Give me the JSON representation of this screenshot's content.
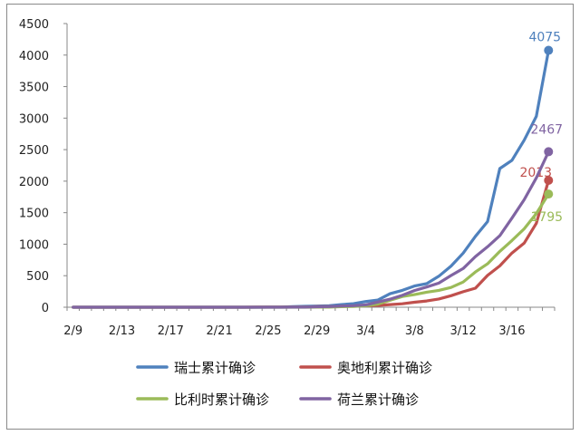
{
  "chart_data": {
    "type": "line",
    "title": "",
    "xlabel": "",
    "ylabel": "",
    "ylim": [
      0,
      4500
    ],
    "yticks": [
      0,
      500,
      1000,
      1500,
      2000,
      2500,
      3000,
      3500,
      4000,
      4500
    ],
    "xticks": [
      "2/9",
      "2/13",
      "2/17",
      "2/21",
      "2/25",
      "2/29",
      "3/4",
      "3/8",
      "3/12",
      "3/16"
    ],
    "x": [
      "2/9",
      "2/10",
      "2/11",
      "2/12",
      "2/13",
      "2/14",
      "2/15",
      "2/16",
      "2/17",
      "2/18",
      "2/19",
      "2/20",
      "2/21",
      "2/22",
      "2/23",
      "2/24",
      "2/25",
      "2/26",
      "2/27",
      "2/28",
      "2/29",
      "3/1",
      "3/2",
      "3/3",
      "3/4",
      "3/5",
      "3/6",
      "3/7",
      "3/8",
      "3/9",
      "3/10",
      "3/11",
      "3/12",
      "3/13",
      "3/14",
      "3/15",
      "3/16",
      "3/17",
      "3/18",
      "3/19"
    ],
    "grid": false,
    "legend_position": "bottom",
    "series": [
      {
        "name": "瑞士累计确诊",
        "color": "#4f81bd",
        "end_label": "4075",
        "values": [
          0,
          0,
          0,
          0,
          0,
          0,
          0,
          0,
          0,
          0,
          0,
          0,
          0,
          0,
          0,
          0,
          1,
          1,
          8,
          15,
          18,
          24,
          42,
          56,
          90,
          114,
          214,
          268,
          337,
          374,
          491,
          652,
          858,
          1125,
          1359,
          2200,
          2330,
          2650,
          3028,
          4075
        ]
      },
      {
        "name": "奥地利累计确诊",
        "color": "#c0504d",
        "end_label": "2013",
        "values": [
          0,
          0,
          0,
          0,
          0,
          0,
          0,
          0,
          0,
          0,
          0,
          0,
          0,
          0,
          0,
          2,
          2,
          3,
          3,
          3,
          9,
          10,
          14,
          18,
          24,
          29,
          41,
          55,
          79,
          99,
          131,
          182,
          246,
          302,
          504,
          655,
          860,
          1016,
          1332,
          2013
        ]
      },
      {
        "name": "比利时累计确诊",
        "color": "#9bbb59",
        "end_label": "1795",
        "values": [
          0,
          0,
          0,
          0,
          0,
          0,
          0,
          0,
          0,
          0,
          0,
          0,
          0,
          0,
          0,
          0,
          0,
          0,
          0,
          0,
          1,
          2,
          8,
          13,
          23,
          50,
          109,
          169,
          200,
          239,
          267,
          314,
          399,
          559,
          689,
          886,
          1058,
          1243,
          1486,
          1795
        ]
      },
      {
        "name": "荷兰累计确诊",
        "color": "#8064a2",
        "end_label": "2467",
        "values": [
          0,
          0,
          0,
          0,
          0,
          0,
          0,
          0,
          0,
          0,
          0,
          0,
          0,
          0,
          0,
          0,
          0,
          0,
          1,
          2,
          7,
          10,
          18,
          24,
          38,
          82,
          128,
          188,
          265,
          321,
          382,
          503,
          614,
          804,
          959,
          1135,
          1413,
          1705,
          2051,
          2467
        ]
      }
    ]
  }
}
